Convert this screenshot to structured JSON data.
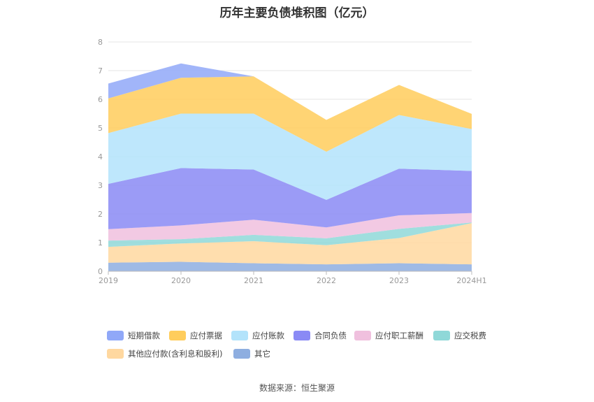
{
  "title": "历年主要负债堆积图（亿元）",
  "source": "数据来源：恒生聚源",
  "chart_data": {
    "type": "area",
    "stacked": true,
    "categories": [
      "2019",
      "2020",
      "2021",
      "2022",
      "2023",
      "2024H1"
    ],
    "ylim": [
      0,
      8
    ],
    "yticks": [
      0,
      1,
      2,
      3,
      4,
      5,
      6,
      7,
      8
    ],
    "grid": true,
    "legend_position": "bottom",
    "series": [
      {
        "name": "其它",
        "color": "#8eaee0",
        "values": [
          0.3,
          0.33,
          0.28,
          0.24,
          0.28,
          0.24
        ]
      },
      {
        "name": "其他应付款(含利息和股利)",
        "color": "#ffd8a0",
        "values": [
          0.55,
          0.64,
          0.77,
          0.67,
          0.88,
          1.44
        ]
      },
      {
        "name": "应交税费",
        "color": "#8fd8d8",
        "values": [
          0.22,
          0.15,
          0.22,
          0.24,
          0.32,
          0.02
        ]
      },
      {
        "name": "应付职工薪酬",
        "color": "#f0c0de",
        "values": [
          0.4,
          0.48,
          0.53,
          0.38,
          0.47,
          0.33
        ]
      },
      {
        "name": "合同负债",
        "color": "#8a8af5",
        "values": [
          1.58,
          2.0,
          1.75,
          0.96,
          1.63,
          1.47
        ]
      },
      {
        "name": "应付账款",
        "color": "#b3e3fb",
        "values": [
          1.77,
          1.9,
          1.95,
          1.68,
          1.87,
          1.46
        ]
      },
      {
        "name": "应付票据",
        "color": "#ffcd5c",
        "values": [
          1.21,
          1.25,
          1.3,
          1.11,
          1.05,
          0.53
        ]
      },
      {
        "name": "短期借款",
        "color": "#90a8f8",
        "values": [
          0.52,
          0.5,
          0.0,
          0.0,
          0.0,
          0.0
        ]
      }
    ]
  },
  "legend": [
    {
      "label": "短期借款",
      "color": "#90a8f8"
    },
    {
      "label": "应付票据",
      "color": "#ffcd5c"
    },
    {
      "label": "应付账款",
      "color": "#b3e3fb"
    },
    {
      "label": "合同负债",
      "color": "#8a8af5"
    },
    {
      "label": "应付职工薪酬",
      "color": "#f0c0de"
    },
    {
      "label": "应交税费",
      "color": "#8fd8d8"
    },
    {
      "label": "其他应付款(含利息和股利)",
      "color": "#ffd8a0"
    },
    {
      "label": "其它",
      "color": "#8eaee0"
    }
  ]
}
